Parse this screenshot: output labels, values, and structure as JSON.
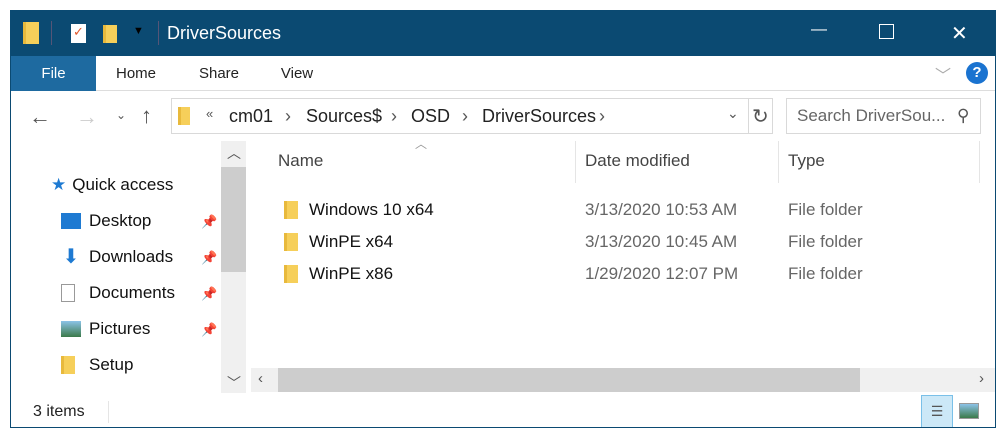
{
  "window": {
    "title": "DriverSources",
    "minimize": "—",
    "maximize": "☐",
    "close": "✕"
  },
  "ribbon": {
    "tabs": [
      "File",
      "Home",
      "Share",
      "View"
    ],
    "accent": "#1e6aa0",
    "help": "?"
  },
  "address": {
    "overflow": "«",
    "crumbs": [
      "cm01",
      "Sources$",
      "OSD",
      "DriverSources"
    ],
    "refresh": "↻",
    "search_placeholder": "Search DriverSou..."
  },
  "nav": {
    "quick_access": "Quick access",
    "items": [
      {
        "label": "Desktop",
        "pinned": true
      },
      {
        "label": "Downloads",
        "pinned": true
      },
      {
        "label": "Documents",
        "pinned": true
      },
      {
        "label": "Pictures",
        "pinned": true
      },
      {
        "label": "Setup",
        "pinned": false
      }
    ]
  },
  "columns": [
    "Name",
    "Date modified",
    "Type"
  ],
  "files": [
    {
      "name": "Windows 10 x64",
      "date": "3/13/2020 10:53 AM",
      "type": "File folder"
    },
    {
      "name": "WinPE x64",
      "date": "3/13/2020 10:45 AM",
      "type": "File folder"
    },
    {
      "name": "WinPE x86",
      "date": "1/29/2020 12:07 PM",
      "type": "File folder"
    }
  ],
  "status": {
    "count": "3 items"
  }
}
